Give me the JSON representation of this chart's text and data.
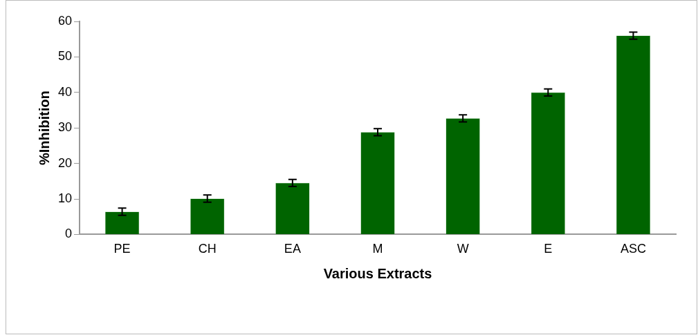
{
  "chart_data": {
    "type": "bar",
    "xlabel": "Various Extracts",
    "ylabel": "%Inhibition",
    "categories": [
      "PE",
      "CH",
      "EA",
      "M",
      "W",
      "E",
      "ASC"
    ],
    "values": [
      6.4,
      10.1,
      14.5,
      28.8,
      32.7,
      40.0,
      56.0
    ],
    "errors": [
      1,
      1,
      1,
      1,
      1,
      1,
      1
    ],
    "color": "#006400",
    "ylim": [
      0,
      60
    ],
    "yticks": [
      0,
      10,
      20,
      30,
      40,
      50,
      60
    ],
    "grid": false,
    "legend": false
  }
}
